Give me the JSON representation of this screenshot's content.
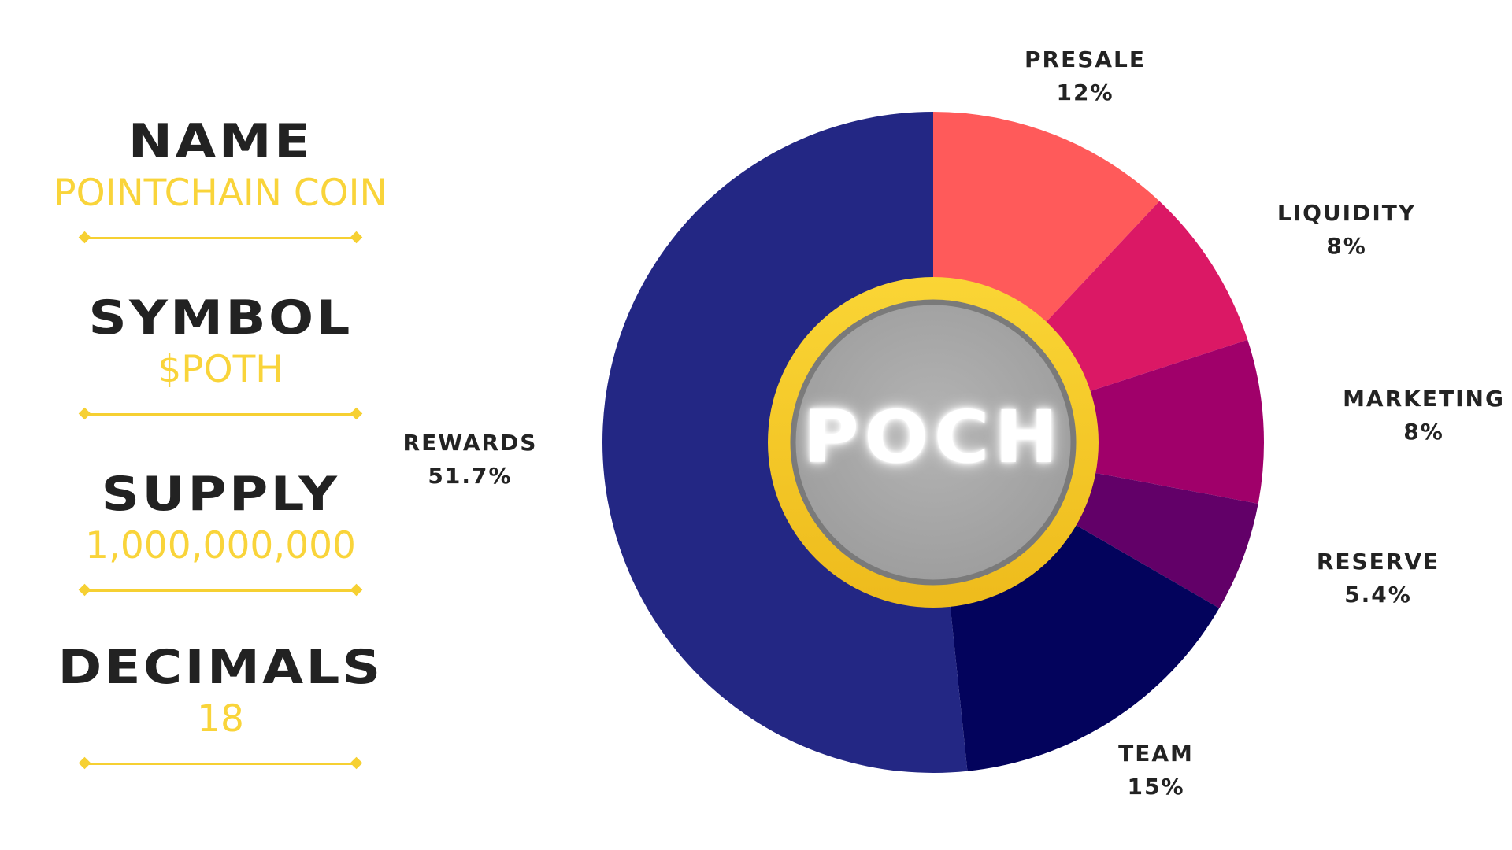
{
  "info": {
    "name_label": "NAME",
    "name_value": "POINTCHAIN COIN",
    "symbol_label": "SYMBOL",
    "symbol_value": "$POTH",
    "supply_label": "SUPPLY",
    "supply_value": "1,000,000,000",
    "decimals_label": "DECIMALS",
    "decimals_value": "18"
  },
  "colors": {
    "accent": "#f9d43a",
    "text": "#222222",
    "coin_ring": "#f7c72a",
    "coin_face": "#a9a9a9"
  },
  "center_text": "POCH",
  "chart_data": {
    "type": "pie",
    "variant": "donut",
    "start_angle_deg": 0,
    "direction": "clockwise",
    "slices": [
      {
        "label": "PRESALE",
        "value": 12,
        "display": "12%",
        "color": "#ff5a5a"
      },
      {
        "label": "LIQUIDITY",
        "value": 8,
        "display": "8%",
        "color": "#db1865"
      },
      {
        "label": "MARKETING",
        "value": 8,
        "display": "8%",
        "color": "#a0006a"
      },
      {
        "label": "RESERVE",
        "value": 5.4,
        "display": "5.4%",
        "color": "#620068"
      },
      {
        "label": "TEAM",
        "value": 15,
        "display": "15%",
        "color": "#03035c"
      },
      {
        "label": "REWARDS",
        "value": 51.7,
        "display": "51.7%",
        "color": "#232784"
      }
    ]
  }
}
